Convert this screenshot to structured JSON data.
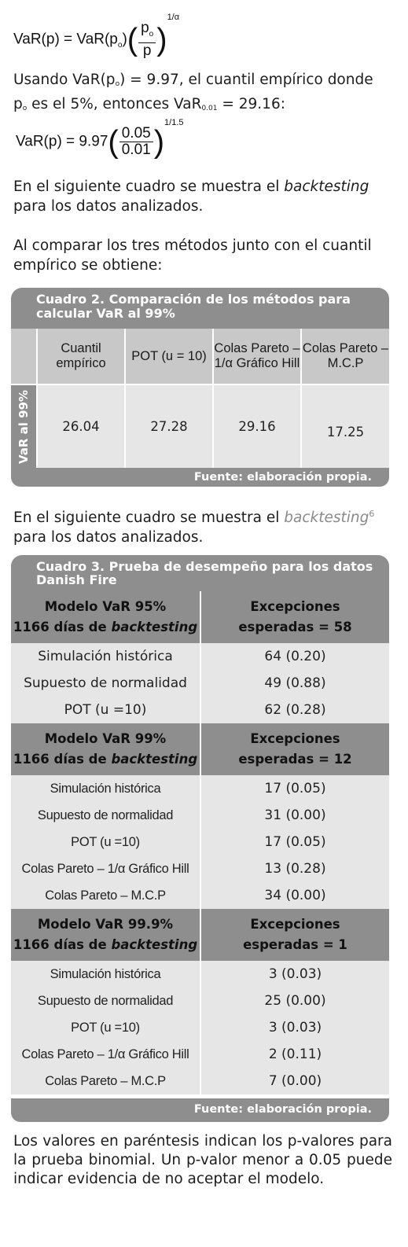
{
  "formula1": {
    "lhs": "VaR(p) = VaR(p",
    "lhs_sub": "o",
    "lhs_close": ")",
    "num": "p",
    "num_sub": "o",
    "den": "p",
    "exp": "1/α"
  },
  "para1": {
    "a": "Usando VaR(p",
    "a_sub": "o",
    "b": ") = 9.97, el cuantil empírico donde",
    "c": "p",
    "c_sub": "o",
    "d": " es el 5%, entonces VaR",
    "d_sub": "0.01",
    "e": " = 29.16:"
  },
  "formula2": {
    "lhs": "VaR(p) = 9.97",
    "num": "0.05",
    "den": "0.01",
    "exp": "1/1.5"
  },
  "para2": {
    "a": "En el siguiente cuadro se muestra el ",
    "em": "backtesting",
    "b": "para los datos analizados."
  },
  "para3": {
    "a": "Al comparar los tres métodos junto con el cuantil",
    "b": "empírico se obtiene:"
  },
  "cuadro2": {
    "title_line1": "Cuadro 2. Comparación de los métodos para",
    "title_line2": "calcular VaR al 99%",
    "headers": [
      "Cuantil empírico",
      "POT (u = 10)",
      "Colas Pareto – 1/α Gráfico Hill",
      "Colas Pareto – M.C.P"
    ],
    "row_label": "VaR al 99%",
    "values": [
      "26.04",
      "27.28",
      "29.16",
      "17.25"
    ],
    "source": "Fuente: elaboración propia."
  },
  "para4": {
    "a": "En el siguiente cuadro se muestra el ",
    "em": "backtesting",
    "sup": "6",
    "b": "para los datos analizados."
  },
  "cuadro3": {
    "title_line1": "Cuadro 3. Prueba de desempeño para los datos",
    "title_line2": "Danish Fire",
    "groups": [
      {
        "model": "Modelo VaR 95%",
        "days": "1166 días de ",
        "days_em": "backtesting",
        "exc_l1": "Excepciones",
        "exc_l2": "esperadas = 58",
        "rows": [
          [
            "Simulación histórica",
            "64 (0.20)"
          ],
          [
            "Supuesto de normalidad",
            "49 (0.88)"
          ],
          [
            "POT (u =10)",
            "62 (0.28)"
          ]
        ]
      },
      {
        "model": "Modelo VaR 99%",
        "days": "1166 días de ",
        "days_em": "backtesting",
        "exc_l1": "Excepciones",
        "exc_l2": "esperadas = 12",
        "rows": [
          [
            "Simulación histórica",
            "17 (0.05)"
          ],
          [
            "Supuesto de normalidad",
            "31 (0.00)"
          ],
          [
            "POT (u =10)",
            "17 (0.05)"
          ],
          [
            "Colas Pareto – 1/α Gráfico Hill",
            "13 (0.28)"
          ],
          [
            "Colas Pareto – M.C.P",
            "34 (0.00)"
          ]
        ]
      },
      {
        "model": "Modelo VaR 99.9%",
        "days": "1166 días de ",
        "days_em": "backtesting",
        "exc_l1": "Excepciones",
        "exc_l2": "esperadas = 1",
        "rows": [
          [
            "Simulación histórica",
            "3 (0.03)"
          ],
          [
            "Supuesto de normalidad",
            "25 (0.00)"
          ],
          [
            "POT (u =10)",
            "3 (0.03)"
          ],
          [
            "Colas Pareto – 1/α Gráfico Hill",
            "2 (0.11)"
          ],
          [
            "Colas Pareto – M.C.P",
            "7 (0.00)"
          ]
        ]
      }
    ],
    "source": "Fuente: elaboración propia."
  },
  "para5": {
    "text": "Los valores en paréntesis indican los p-valores para la prueba binomial. Un p-valor menor a 0.05 puede indicar evidencia de no aceptar el modelo."
  }
}
